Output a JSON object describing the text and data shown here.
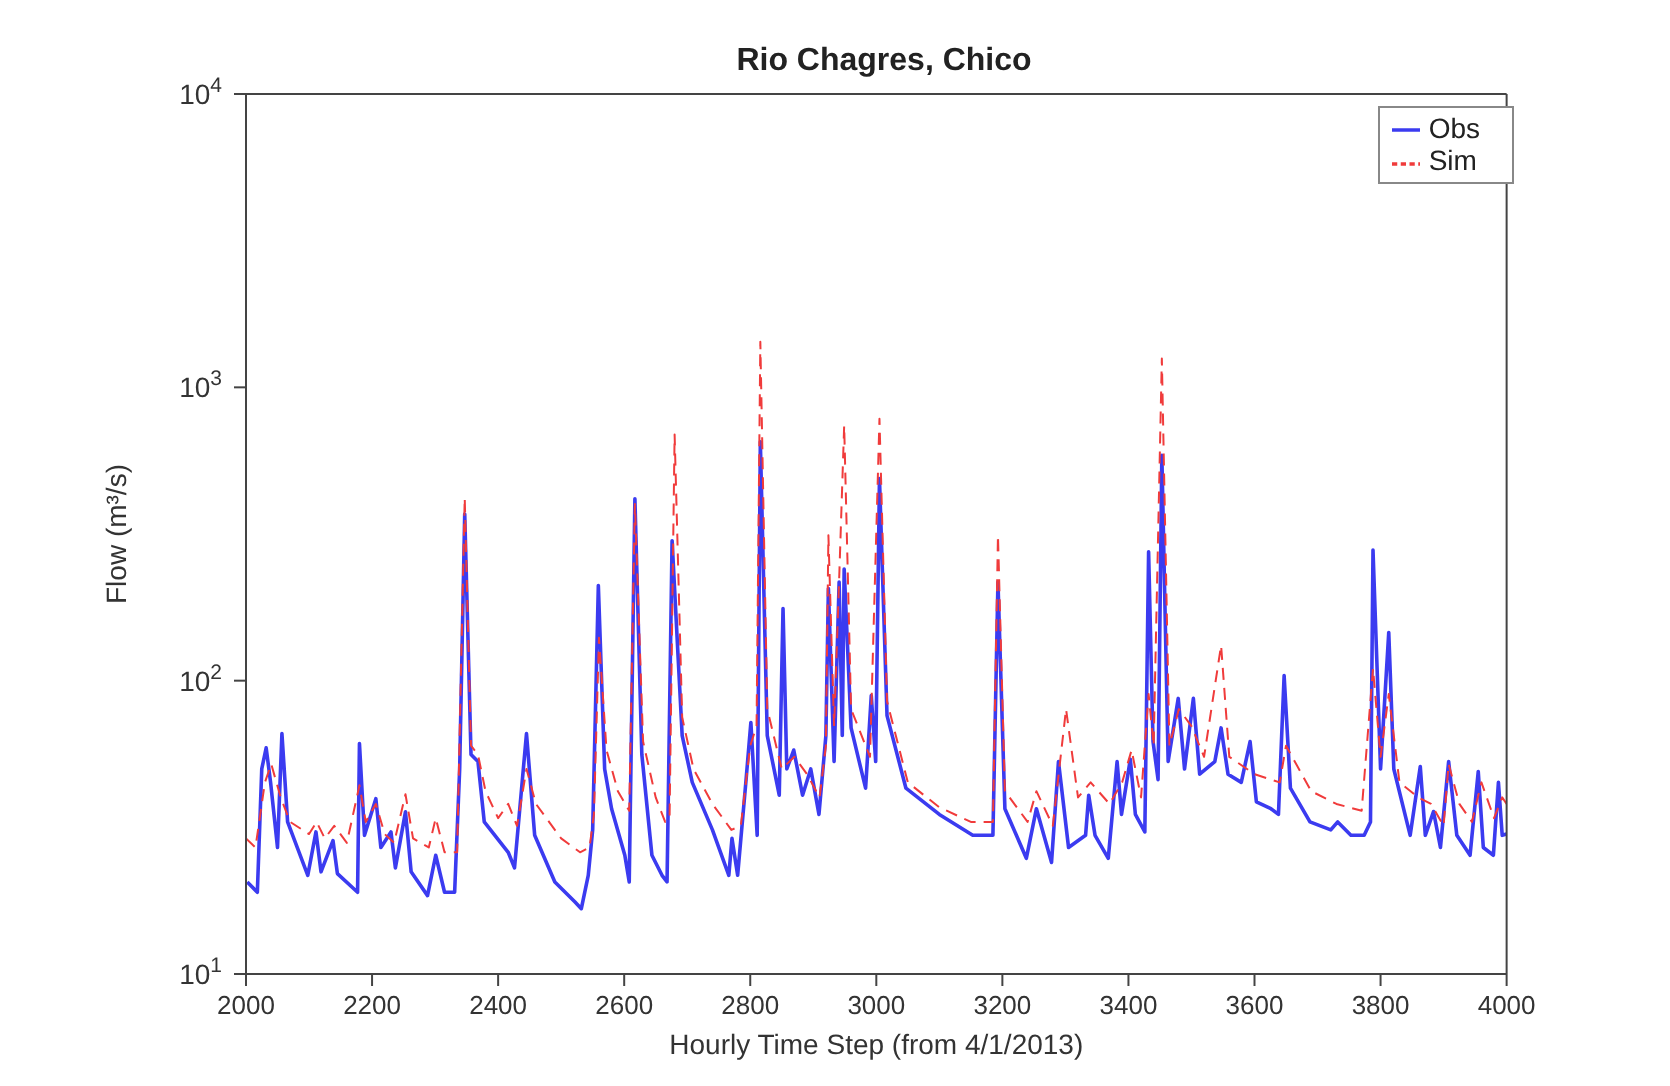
{
  "chart_data": {
    "type": "line",
    "title": "Rio Chagres, Chico",
    "xlabel": "Hourly Time Step (from 4/1/2013)",
    "ylabel": "Flow (m³/s)",
    "log": "y",
    "legend": "top right",
    "xlim": [
      2000,
      4000
    ],
    "xticks": [
      2000,
      2200,
      2400,
      2600,
      2800,
      3000,
      3200,
      3400,
      3600,
      3800,
      4000
    ],
    "ylim": [
      10,
      10000
    ],
    "yticks": [
      {
        "value": 10,
        "label": "10$^{1}$"
      },
      {
        "value": 100,
        "label": "10$^{2}$"
      },
      {
        "value": 1000,
        "label": "10$^{3}$"
      },
      {
        "value": 10000,
        "label": "10$^{4}$"
      }
    ],
    "series": [
      {
        "name": "Obs",
        "color": "#3b3bf0",
        "line_style": "solid",
        "x": [
          2002,
          2018,
          2025,
          2032,
          2039,
          2050,
          2057,
          2066,
          2098,
          2111,
          2119,
          2138,
          2145,
          2177,
          2180,
          2188,
          2206,
          2214,
          2230,
          2237,
          2253,
          2262,
          2288,
          2301,
          2315,
          2331,
          2339,
          2347,
          2357,
          2368,
          2378,
          2416,
          2426,
          2445,
          2458,
          2490,
          2522,
          2532,
          2543,
          2550,
          2559,
          2569,
          2580,
          2601,
          2608,
          2617,
          2628,
          2644,
          2660,
          2668,
          2676,
          2692,
          2708,
          2740,
          2766,
          2771,
          2780,
          2793,
          2801,
          2811,
          2816,
          2827,
          2846,
          2852,
          2858,
          2869,
          2883,
          2896,
          2909,
          2920,
          2924,
          2933,
          2941,
          2946,
          2949,
          2960,
          2983,
          2992,
          2999,
          3005,
          3017,
          3047,
          3100,
          3153,
          3185,
          3193,
          3204,
          3238,
          3254,
          3278,
          3289,
          3305,
          3332,
          3337,
          3347,
          3368,
          3382,
          3389,
          3403,
          3411,
          3426,
          3432,
          3439,
          3447,
          3453,
          3463,
          3479,
          3489,
          3503,
          3513,
          3537,
          3547,
          3558,
          3579,
          3593,
          3603,
          3626,
          3638,
          3647,
          3657,
          3688,
          3721,
          3732,
          3753,
          3774,
          3784,
          3788,
          3800,
          3813,
          3821,
          3847,
          3863,
          3871,
          3884,
          3895,
          3908,
          3921,
          3942,
          3955,
          3963,
          3979,
          3987,
          3993,
          4000
        ],
        "values": [
          20.6,
          19,
          50,
          59,
          45,
          27,
          66,
          33,
          21.7,
          30.5,
          22.3,
          28.5,
          22,
          19,
          61,
          29.7,
          39.6,
          27,
          30.5,
          23,
          35.7,
          22.3,
          18.5,
          25.4,
          19,
          19,
          50,
          370,
          56,
          53,
          33,
          26,
          23,
          66,
          29.7,
          20.6,
          17.6,
          16.7,
          21.7,
          31,
          211,
          50,
          36.6,
          25.4,
          20.6,
          417,
          56,
          25.4,
          21.7,
          20.6,
          300,
          65,
          45,
          31,
          21.7,
          29,
          21.7,
          45,
          72,
          29.7,
          652,
          65,
          40.7,
          176,
          50,
          58,
          40.7,
          50,
          35,
          65,
          206,
          53,
          217,
          65,
          240,
          69,
          43,
          89,
          53,
          489,
          76,
          43,
          35,
          29.7,
          29.7,
          217,
          36.6,
          24.8,
          36.6,
          24,
          53,
          27,
          29.7,
          40.7,
          29.7,
          24.8,
          53,
          35,
          54,
          35,
          30.5,
          275,
          62,
          46,
          586,
          53,
          87,
          50,
          87,
          48,
          53,
          69,
          48,
          45,
          62,
          38.6,
          36.6,
          35,
          104,
          43,
          33,
          31,
          33,
          29.7,
          29.7,
          33,
          279,
          50,
          146,
          50,
          29.7,
          51,
          29.7,
          35.8,
          27,
          53,
          29.7,
          25.4,
          49,
          27,
          25.4,
          45,
          29.7,
          30
        ]
      },
      {
        "name": "Sim",
        "color": "#f03b3b",
        "line_style": "dashed",
        "x": [
          2000,
          2015,
          2030,
          2040,
          2055,
          2070,
          2100,
          2112,
          2125,
          2140,
          2160,
          2180,
          2190,
          2206,
          2220,
          2235,
          2253,
          2265,
          2290,
          2301,
          2315,
          2335,
          2347,
          2357,
          2368,
          2380,
          2400,
          2416,
          2430,
          2445,
          2460,
          2500,
          2530,
          2545,
          2552,
          2560,
          2572,
          2590,
          2608,
          2617,
          2630,
          2650,
          2665,
          2672,
          2680,
          2692,
          2710,
          2740,
          2770,
          2785,
          2800,
          2810,
          2816,
          2827,
          2850,
          2870,
          2890,
          2910,
          2920,
          2924,
          2933,
          2941,
          2949,
          2960,
          2990,
          3005,
          3017,
          3050,
          3100,
          3150,
          3185,
          3193,
          3204,
          3240,
          3254,
          3280,
          3301,
          3320,
          3340,
          3370,
          3390,
          3405,
          3420,
          3432,
          3440,
          3453,
          3465,
          3480,
          3500,
          3520,
          3547,
          3560,
          3600,
          3640,
          3650,
          3690,
          3730,
          3770,
          3788,
          3800,
          3813,
          3830,
          3860,
          3880,
          3900,
          3908,
          3925,
          3945,
          3960,
          3980,
          3993,
          4000
        ],
        "values": [
          29,
          27,
          45,
          52,
          40,
          33,
          30,
          33,
          29,
          32,
          28,
          44,
          33,
          38,
          30,
          28,
          41,
          29,
          27,
          34,
          26,
          26,
          420,
          60,
          56,
          42,
          34,
          38,
          32,
          50,
          38,
          29,
          26,
          27,
          35,
          140,
          58,
          42,
          36,
          400,
          62,
          40,
          33,
          34,
          690,
          75,
          50,
          38,
          31,
          32,
          60,
          70,
          1430,
          80,
          50,
          55,
          48,
          40,
          60,
          313,
          70,
          220,
          741,
          80,
          55,
          781,
          85,
          45,
          37,
          33,
          33,
          313,
          42,
          33,
          42,
          32,
          80,
          40,
          45,
          38,
          45,
          58,
          40,
          90,
          60,
          1254,
          60,
          80,
          70,
          55,
          132,
          55,
          48,
          45,
          60,
          42,
          38,
          36,
          110,
          55,
          90,
          45,
          40,
          38,
          32,
          52,
          38,
          33,
          45,
          34,
          40,
          38
        ]
      }
    ]
  }
}
